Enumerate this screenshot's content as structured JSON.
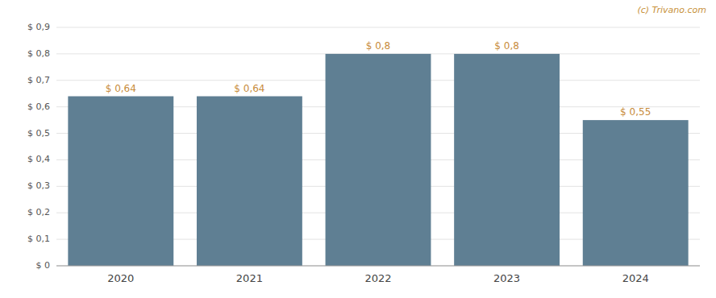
{
  "chart_data": {
    "type": "bar",
    "categories": [
      "2020",
      "2021",
      "2022",
      "2023",
      "2024"
    ],
    "values": [
      0.64,
      0.64,
      0.8,
      0.8,
      0.55
    ],
    "value_labels": [
      "$ 0,64",
      "$ 0,64",
      "$ 0,8",
      "$ 0,8",
      "$ 0,55"
    ],
    "data_labels": true,
    "color": "#5f7f93",
    "ylim": [
      0,
      0.9
    ],
    "yticks": [
      {
        "value": 0,
        "label": "$ 0"
      },
      {
        "value": 0.1,
        "label": "$ 0,1"
      },
      {
        "value": 0.2,
        "label": "$ 0,2"
      },
      {
        "value": 0.3,
        "label": "$ 0,3"
      },
      {
        "value": 0.4,
        "label": "$ 0,4"
      },
      {
        "value": 0.5,
        "label": "$ 0,5"
      },
      {
        "value": 0.6,
        "label": "$ 0,6"
      },
      {
        "value": 0.7,
        "label": "$ 0,7"
      },
      {
        "value": 0.8,
        "label": "$ 0,8"
      },
      {
        "value": 0.9,
        "label": "$ 0,9"
      }
    ],
    "grid": true,
    "annotations": [
      "(c) Trivano.com"
    ]
  }
}
